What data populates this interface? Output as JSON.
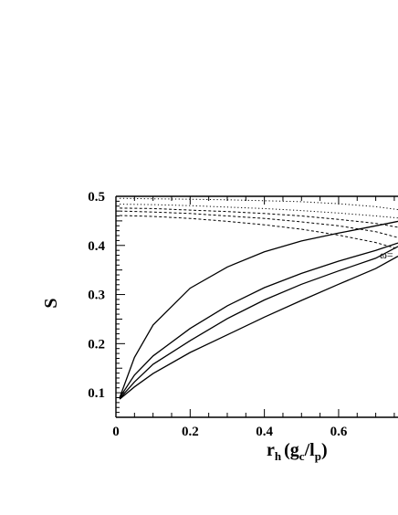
{
  "chart_data": {
    "type": "line",
    "title": "",
    "xlabel": {
      "main": "r",
      "sub1": "h",
      "paren_open": "(g",
      "sub2": "c",
      "slash": "/l",
      "sub3": "p",
      "paren_close": ")"
    },
    "ylabel": "S",
    "xlim": [
      0,
      0.76
    ],
    "ylim": [
      0.05,
      0.5
    ],
    "x_ticks": [
      0,
      0.2,
      0.4,
      0.6
    ],
    "x_tick_labels": [
      "0",
      "0.2",
      "0.4",
      "0.6"
    ],
    "y_ticks": [
      0.1,
      0.2,
      0.3,
      0.4,
      0.5
    ],
    "y_tick_labels": [
      "0.1",
      "0.2",
      "0.3",
      "0.4",
      "0.5"
    ],
    "grid": false,
    "annotation": "ω=",
    "series": [
      {
        "style": "solid",
        "x": [
          0.01,
          0.05,
          0.1,
          0.2,
          0.3,
          0.4,
          0.5,
          0.6,
          0.7,
          0.76
        ],
        "values": [
          0.09,
          0.172,
          0.238,
          0.313,
          0.356,
          0.387,
          0.409,
          0.425,
          0.44,
          0.449
        ]
      },
      {
        "style": "solid",
        "x": [
          0.01,
          0.05,
          0.1,
          0.2,
          0.3,
          0.4,
          0.5,
          0.6,
          0.7,
          0.76
        ],
        "values": [
          0.09,
          0.136,
          0.175,
          0.231,
          0.277,
          0.314,
          0.343,
          0.368,
          0.39,
          0.405
        ]
      },
      {
        "style": "solid",
        "x": [
          0.01,
          0.05,
          0.1,
          0.2,
          0.3,
          0.4,
          0.5,
          0.6,
          0.7,
          0.76
        ],
        "values": [
          0.088,
          0.122,
          0.158,
          0.206,
          0.251,
          0.289,
          0.321,
          0.348,
          0.374,
          0.398
        ]
      },
      {
        "style": "solid",
        "x": [
          0.01,
          0.05,
          0.1,
          0.2,
          0.3,
          0.4,
          0.5,
          0.6,
          0.7,
          0.76
        ],
        "values": [
          0.087,
          0.112,
          0.139,
          0.182,
          0.218,
          0.254,
          0.288,
          0.321,
          0.353,
          0.378
        ]
      },
      {
        "style": "dotted",
        "x": [
          0.01,
          0.1,
          0.2,
          0.3,
          0.4,
          0.5,
          0.6,
          0.7,
          0.76
        ],
        "values": [
          0.496,
          0.495,
          0.494,
          0.493,
          0.491,
          0.489,
          0.485,
          0.479,
          0.473
        ]
      },
      {
        "style": "dotted",
        "x": [
          0.01,
          0.1,
          0.2,
          0.3,
          0.4,
          0.5,
          0.6,
          0.7,
          0.76
        ],
        "values": [
          0.484,
          0.483,
          0.481,
          0.478,
          0.475,
          0.471,
          0.466,
          0.46,
          0.456
        ]
      },
      {
        "style": "dashed",
        "x": [
          0.01,
          0.1,
          0.2,
          0.3,
          0.4,
          0.5,
          0.6,
          0.7,
          0.76
        ],
        "values": [
          0.476,
          0.475,
          0.472,
          0.469,
          0.465,
          0.46,
          0.453,
          0.445,
          0.437
        ]
      },
      {
        "style": "dashed",
        "x": [
          0.01,
          0.1,
          0.2,
          0.3,
          0.4,
          0.5,
          0.6,
          0.7,
          0.76
        ],
        "values": [
          0.47,
          0.468,
          0.465,
          0.46,
          0.455,
          0.448,
          0.44,
          0.428,
          0.416
        ]
      },
      {
        "style": "dashed",
        "x": [
          0.01,
          0.1,
          0.2,
          0.3,
          0.4,
          0.5,
          0.6,
          0.7,
          0.76
        ],
        "values": [
          0.461,
          0.459,
          0.455,
          0.449,
          0.442,
          0.433,
          0.421,
          0.406,
          0.393
        ]
      }
    ]
  }
}
